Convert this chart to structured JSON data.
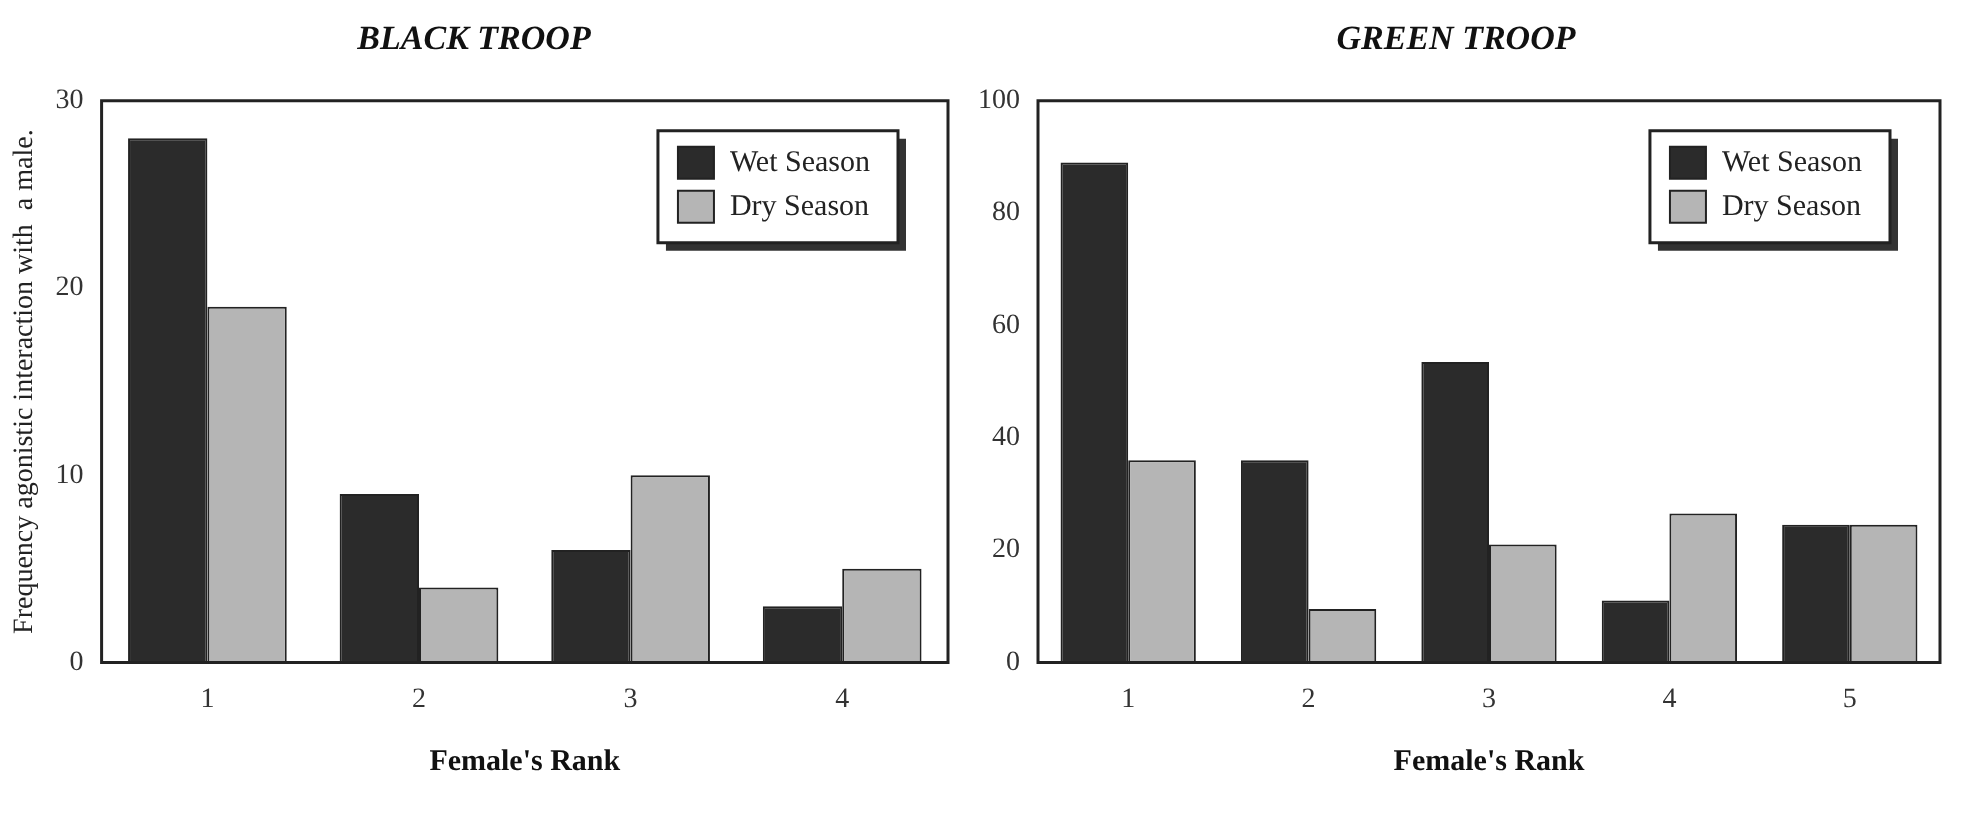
{
  "chart_data": [
    {
      "type": "bar",
      "title": "BLACK TROOP",
      "xlabel": "Female's Rank",
      "ylabel": "Frequency agonistic interaction with  a male.",
      "categories": [
        "1",
        "2",
        "3",
        "4"
      ],
      "series": [
        {
          "name": "Wet Season",
          "color": "#2b2b2b",
          "values": [
            28,
            9,
            6,
            3
          ]
        },
        {
          "name": "Dry Season",
          "color": "#b5b5b5",
          "values": [
            19,
            4,
            10,
            5
          ]
        }
      ],
      "ylim": [
        0,
        30
      ],
      "yticks": [
        0,
        10,
        20,
        30
      ],
      "legend": "top right"
    },
    {
      "type": "bar",
      "title": "GREEN TROOP",
      "xlabel": "Female's Rank",
      "categories": [
        "1",
        "2",
        "3",
        "4",
        "5"
      ],
      "series": [
        {
          "name": "Wet Season",
          "color": "#2b2b2b",
          "values": [
            89,
            36,
            53.5,
            11,
            24.5
          ]
        },
        {
          "name": "Dry Season",
          "color": "#b5b5b5",
          "values": [
            36,
            9.5,
            21,
            26.5,
            24.5
          ]
        }
      ],
      "ylim": [
        0,
        100
      ],
      "yticks": [
        0,
        20,
        40,
        60,
        80,
        100
      ],
      "legend": "top right"
    }
  ]
}
